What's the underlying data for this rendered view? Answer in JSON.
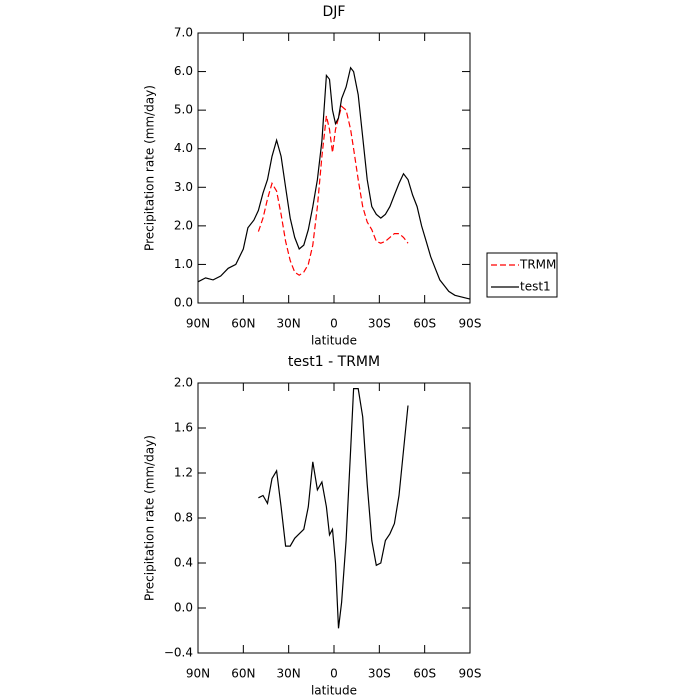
{
  "chart_data": [
    {
      "type": "line",
      "title": "DJF",
      "xlabel": "latitude",
      "ylabel": "Precipitation rate (mm/day)",
      "x": [
        90,
        85,
        80,
        75,
        70,
        65,
        60,
        57,
        53,
        50,
        47,
        44,
        41,
        38,
        35,
        32,
        29,
        26,
        23,
        20,
        17,
        14,
        11,
        8,
        5,
        3,
        1,
        -1,
        -3,
        -5,
        -8,
        -11,
        -13,
        -16,
        -19,
        -22,
        -25,
        -28,
        -31,
        -34,
        -37,
        -40,
        -43,
        -46,
        -49,
        -52,
        -55,
        -58,
        -61,
        -64,
        -67,
        -70,
        -73,
        -76,
        -80,
        -85,
        -90
      ],
      "series": [
        {
          "name": "TRMM",
          "color": "#ff0000",
          "line_style": "dashed",
          "values": [
            null,
            null,
            null,
            null,
            null,
            null,
            null,
            null,
            null,
            1.85,
            2.2,
            2.7,
            3.1,
            2.9,
            2.3,
            1.6,
            1.1,
            0.8,
            0.72,
            0.8,
            1.0,
            1.5,
            2.5,
            3.8,
            4.85,
            4.5,
            3.9,
            4.5,
            4.8,
            5.1,
            5.0,
            4.5,
            4.0,
            3.2,
            2.5,
            2.1,
            1.9,
            1.6,
            1.55,
            1.6,
            1.7,
            1.8,
            1.8,
            1.7,
            1.55,
            null,
            null,
            null,
            null,
            null,
            null,
            null,
            null,
            null,
            null,
            null,
            null
          ]
        },
        {
          "name": "test1",
          "color": "#000000",
          "line_style": "solid",
          "values": [
            0.55,
            0.65,
            0.6,
            0.7,
            0.9,
            1.0,
            1.4,
            1.95,
            2.15,
            2.4,
            2.85,
            3.2,
            3.8,
            4.22,
            3.8,
            3.0,
            2.2,
            1.7,
            1.4,
            1.5,
            1.9,
            2.5,
            3.2,
            4.2,
            5.9,
            5.8,
            5.0,
            4.65,
            4.8,
            5.3,
            5.6,
            6.1,
            6.0,
            5.4,
            4.3,
            3.2,
            2.5,
            2.3,
            2.2,
            2.3,
            2.5,
            2.8,
            3.1,
            3.35,
            3.2,
            2.8,
            2.5,
            2.0,
            1.6,
            1.2,
            0.9,
            0.6,
            0.45,
            0.3,
            0.2,
            0.15,
            0.1
          ]
        }
      ],
      "xlim": [
        90,
        -90
      ],
      "xticks": [
        {
          "value": 90,
          "label": "90N"
        },
        {
          "value": 60,
          "label": "60N"
        },
        {
          "value": 30,
          "label": "30N"
        },
        0,
        {
          "value": -30,
          "label": "30S"
        },
        {
          "value": -60,
          "label": "60S"
        },
        {
          "value": -90,
          "label": "90S"
        }
      ],
      "ylim": [
        0,
        7
      ],
      "yticks": [
        {
          "value": 0,
          "label": "0.0"
        },
        {
          "value": 1,
          "label": "1.0"
        },
        {
          "value": 2,
          "label": "2.0"
        },
        {
          "value": 3,
          "label": "3.0"
        },
        {
          "value": 4,
          "label": "4.0"
        },
        {
          "value": 5,
          "label": "5.0"
        },
        {
          "value": 6,
          "label": "6.0"
        },
        {
          "value": 7,
          "label": "7.0"
        }
      ],
      "legend": "outside right"
    },
    {
      "type": "line",
      "title": "test1 - TRMM",
      "xlabel": "latitude",
      "ylabel": "Precipitation rate (mm/day)",
      "x": [
        90,
        85,
        80,
        75,
        70,
        65,
        60,
        57,
        53,
        50,
        47,
        44,
        41,
        38,
        35,
        32,
        29,
        26,
        23,
        20,
        17,
        14,
        11,
        8,
        5,
        3,
        1,
        -1,
        -3,
        -5,
        -8,
        -11,
        -13,
        -16,
        -19,
        -22,
        -25,
        -28,
        -31,
        -34,
        -37,
        -40,
        -43,
        -46,
        -49,
        -52,
        -55,
        -58,
        -61,
        -64,
        -67,
        -70,
        -73,
        -76,
        -80,
        -85,
        -90
      ],
      "series": [
        {
          "color": "#000000",
          "line_style": "solid",
          "values": [
            null,
            null,
            null,
            null,
            null,
            null,
            null,
            null,
            null,
            0.98,
            1.0,
            0.93,
            1.15,
            1.22,
            0.9,
            0.55,
            0.55,
            0.62,
            0.66,
            0.7,
            0.9,
            1.3,
            1.05,
            1.12,
            0.9,
            0.65,
            0.7,
            0.4,
            -0.18,
            0.05,
            0.6,
            1.4,
            1.95,
            1.95,
            1.7,
            1.1,
            0.6,
            0.38,
            0.4,
            0.6,
            0.66,
            0.75,
            1.0,
            1.4,
            1.8,
            null,
            null,
            null,
            null,
            null,
            null,
            null,
            null,
            null,
            null,
            null,
            null
          ]
        }
      ],
      "xlim": [
        90,
        -90
      ],
      "xticks": [
        {
          "value": 90,
          "label": "90N"
        },
        {
          "value": 60,
          "label": "60N"
        },
        {
          "value": 30,
          "label": "30N"
        },
        0,
        {
          "value": -30,
          "label": "30S"
        },
        {
          "value": -60,
          "label": "60S"
        },
        {
          "value": -90,
          "label": "90S"
        }
      ],
      "ylim": [
        -0.4,
        2.0
      ],
      "yticks": [
        {
          "value": -0.4,
          "label": "−0.4"
        },
        {
          "value": 0,
          "label": "0.0"
        },
        {
          "value": 0.4,
          "label": "0.4"
        },
        {
          "value": 0.8,
          "label": "0.8"
        },
        {
          "value": 1.2,
          "label": "1.2"
        },
        {
          "value": 1.6,
          "label": "1.6"
        },
        {
          "value": 2.0,
          "label": "2.0"
        }
      ]
    }
  ]
}
